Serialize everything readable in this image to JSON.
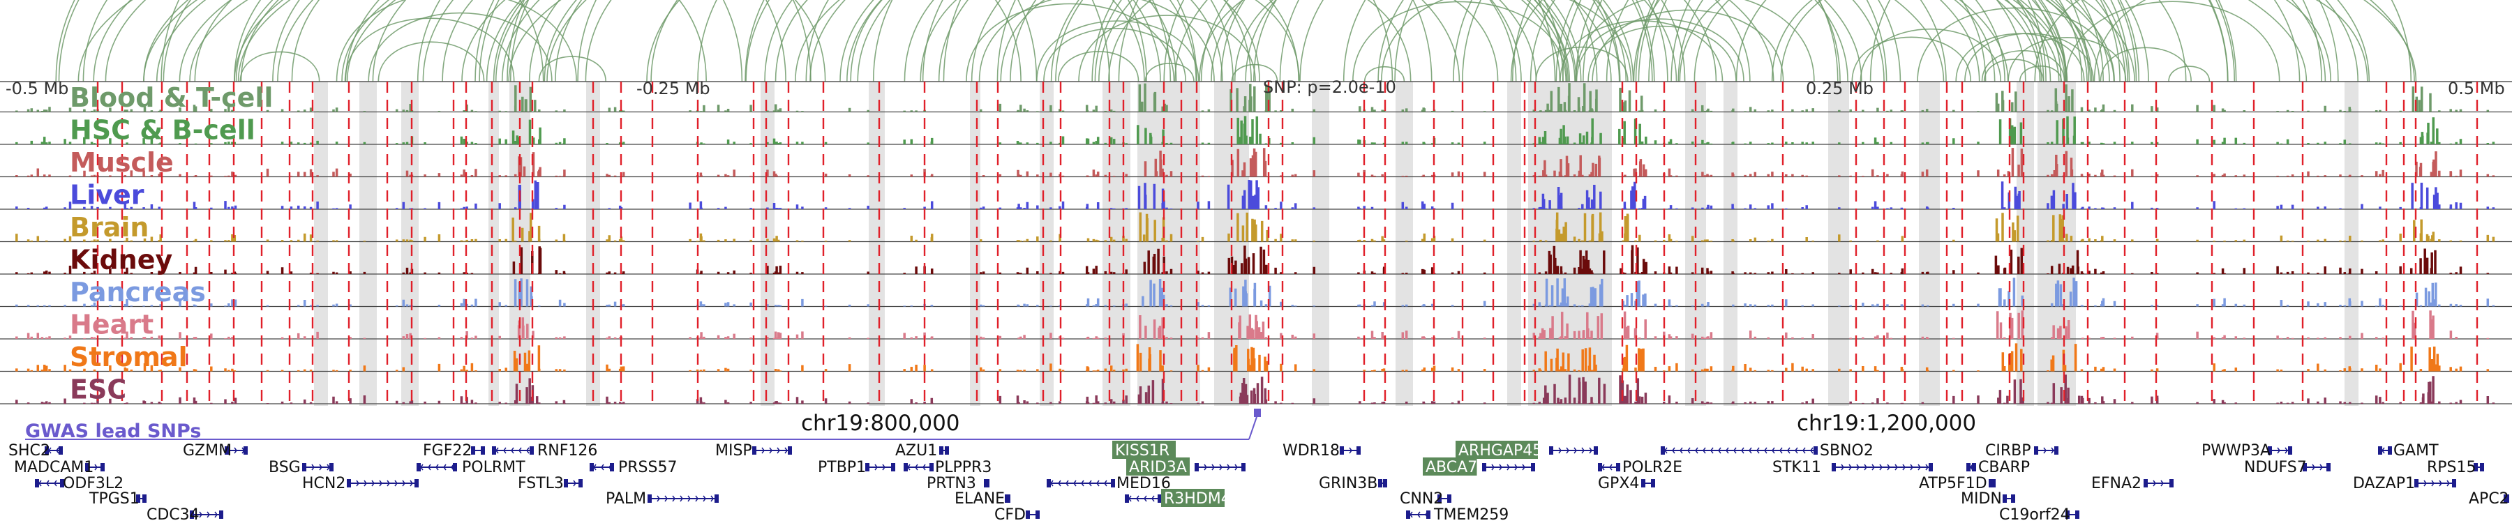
{
  "axis": {
    "tick_labels": [
      "-0.5 Mb",
      "-0.25 Mb",
      "0.25 Mb",
      "0.5 Mb"
    ],
    "snp_label": "SNP: p=2.0e-10"
  },
  "colors": {
    "loop": "#6e9a6a",
    "highlight": "#d9d9d9",
    "red_dash": "#e0202a",
    "gwas": "#6a5acd",
    "gene": "#1c1c8c",
    "gene_box": "#5c8a5a"
  },
  "tracks": [
    {
      "label": "Blood & T-cell",
      "color": "#6e9a6a"
    },
    {
      "label": "HSC & B-cell",
      "color": "#4f9a4f"
    },
    {
      "label": "Muscle",
      "color": "#c45b5b"
    },
    {
      "label": "Liver",
      "color": "#4b4bdb"
    },
    {
      "label": "Brain",
      "color": "#c49a2c"
    },
    {
      "label": "Kidney",
      "color": "#6b0b0b"
    },
    {
      "label": "Pancreas",
      "color": "#7b9ae0"
    },
    {
      "label": "Heart",
      "color": "#d97a8a"
    },
    {
      "label": "Stromal",
      "color": "#f07818"
    },
    {
      "label": "ESC",
      "color": "#8a3a5a"
    }
  ],
  "gwas": {
    "label": "GWAS lead SNPs",
    "chr_labels": [
      "chr19:800,000",
      "chr19:1,200,000"
    ]
  },
  "genes": [
    {
      "name": "SHC2",
      "boxed": false
    },
    {
      "name": "MADCAM1",
      "boxed": false
    },
    {
      "name": "ODF3L2",
      "boxed": false
    },
    {
      "name": "TPGS1",
      "boxed": false
    },
    {
      "name": "CDC34",
      "boxed": false
    },
    {
      "name": "GZMM",
      "boxed": false
    },
    {
      "name": "BSG",
      "boxed": false
    },
    {
      "name": "HCN2",
      "boxed": false
    },
    {
      "name": "FGF22",
      "boxed": false
    },
    {
      "name": "POLRMT",
      "boxed": false
    },
    {
      "name": "RNF126",
      "boxed": false
    },
    {
      "name": "FSTL3",
      "boxed": false
    },
    {
      "name": "PRSS57",
      "boxed": false
    },
    {
      "name": "PALM",
      "boxed": false
    },
    {
      "name": "MISP",
      "boxed": false
    },
    {
      "name": "PTBP1",
      "boxed": false
    },
    {
      "name": "AZU1",
      "boxed": false
    },
    {
      "name": "PLPPR3",
      "boxed": false
    },
    {
      "name": "PRTN3",
      "boxed": false
    },
    {
      "name": "ELANE",
      "boxed": false
    },
    {
      "name": "CFD",
      "boxed": false
    },
    {
      "name": "KISS1R",
      "boxed": true
    },
    {
      "name": "ARID3A",
      "boxed": true
    },
    {
      "name": "MED16",
      "boxed": false
    },
    {
      "name": "R3HDM4",
      "boxed": true
    },
    {
      "name": "WDR18",
      "boxed": false
    },
    {
      "name": "GRIN3B",
      "boxed": false
    },
    {
      "name": "CNN2",
      "boxed": false
    },
    {
      "name": "TMEM259",
      "boxed": false
    },
    {
      "name": "ARHGAP45",
      "boxed": true
    },
    {
      "name": "ABCA7",
      "boxed": true
    },
    {
      "name": "GPX4",
      "boxed": false
    },
    {
      "name": "POLR2E",
      "boxed": false
    },
    {
      "name": "SBNO2",
      "boxed": false
    },
    {
      "name": "STK11",
      "boxed": false
    },
    {
      "name": "CIRBP",
      "boxed": false
    },
    {
      "name": "CBARP",
      "boxed": false
    },
    {
      "name": "ATP5F1D",
      "boxed": false
    },
    {
      "name": "MIDN",
      "boxed": false
    },
    {
      "name": "C19orf24",
      "boxed": false
    },
    {
      "name": "EFNA2",
      "boxed": false
    },
    {
      "name": "PWWP3A",
      "boxed": false
    },
    {
      "name": "NDUFS7",
      "boxed": false
    },
    {
      "name": "GAMT",
      "boxed": false
    },
    {
      "name": "DAZAP1",
      "boxed": false
    },
    {
      "name": "RPS15",
      "boxed": false
    },
    {
      "name": "APC2",
      "boxed": false
    }
  ]
}
